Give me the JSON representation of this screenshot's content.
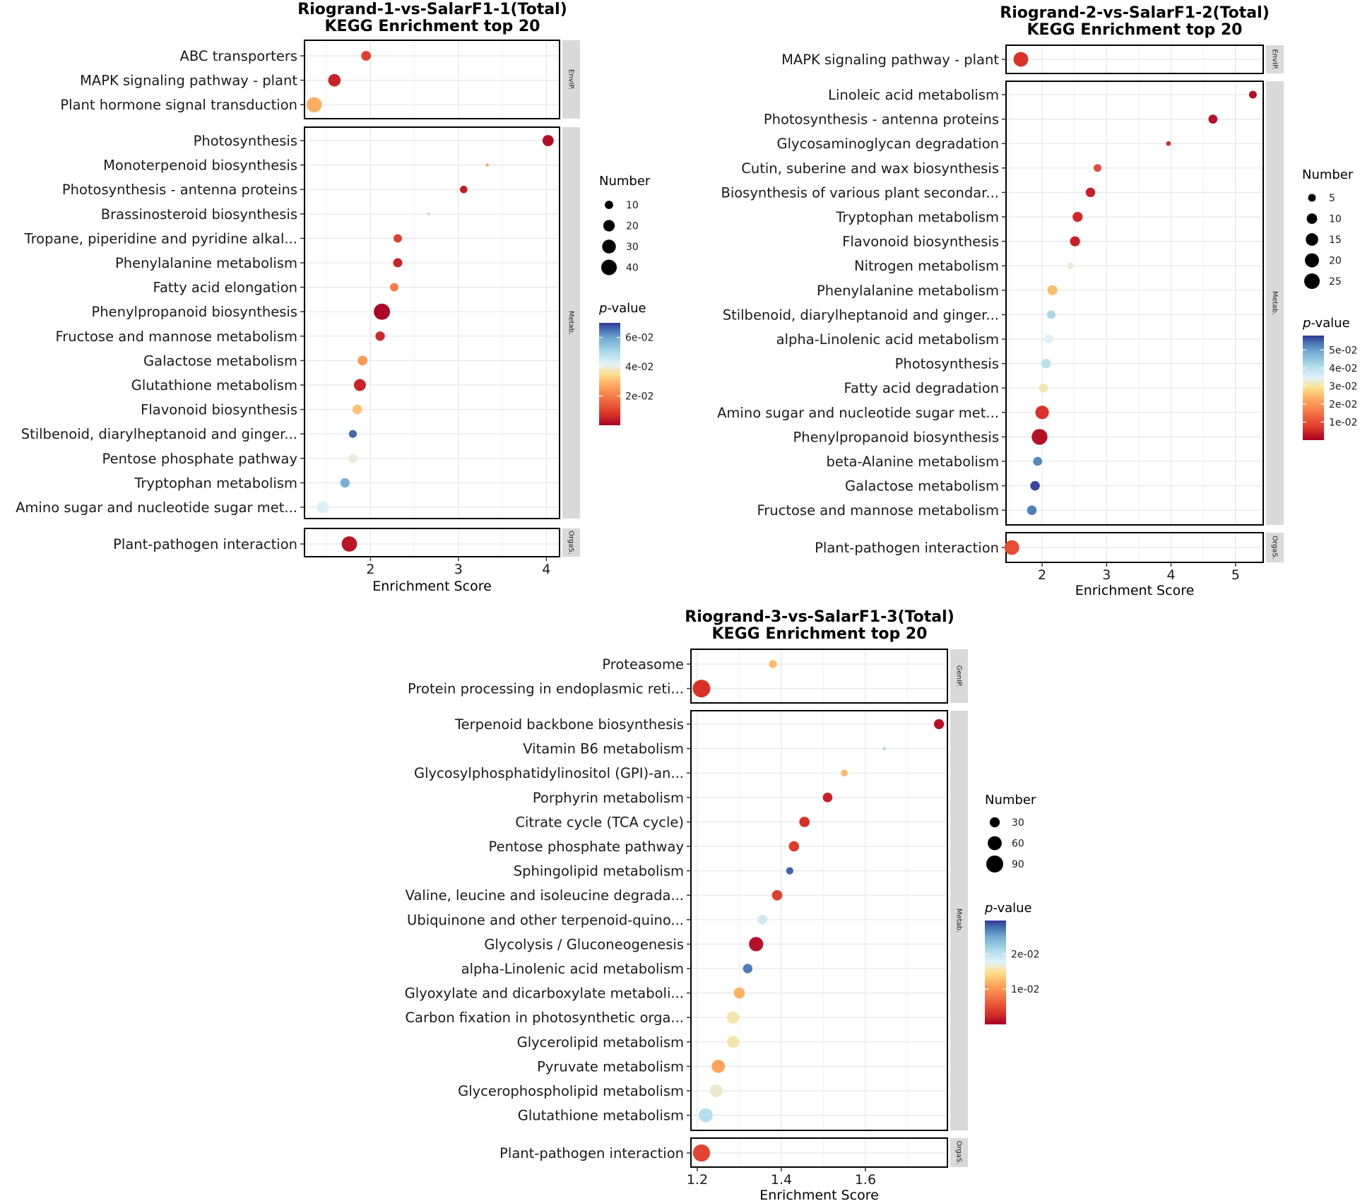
{
  "chart_data": [
    {
      "type": "scatter",
      "title": "Riogrand-1-vs-SalarF1-1(Total)",
      "subtitle": "KEGG Enrichment top 20",
      "xlabel": "Enrichment Score",
      "xlim": [
        1.25,
        4.15
      ],
      "xticks": [
        2,
        3,
        4
      ],
      "xtick_labels": [
        "2",
        "3",
        "4"
      ],
      "size_legend": {
        "title": "Number",
        "values": [
          10,
          20,
          30,
          40
        ],
        "labels": [
          "10",
          "20",
          "30",
          "40"
        ]
      },
      "color_legend": {
        "title_italic": "p",
        "title_rest": "-value",
        "ticks": [
          0.02,
          0.04,
          0.06
        ],
        "tick_labels": [
          "2e-02",
          "4e-02",
          "6e-02"
        ],
        "min": 0.0,
        "max": 0.07
      },
      "panels": [
        {
          "strip": "EnvIP.",
          "terms": [
            {
              "term": "ABC transporters",
              "score": 1.95,
              "count": 14,
              "pvalue": 0.01
            },
            {
              "term": "MAPK signaling pathway - plant",
              "score": 1.59,
              "count": 24,
              "pvalue": 0.005
            },
            {
              "term": "Plant hormone signal transduction",
              "score": 1.36,
              "count": 38,
              "pvalue": 0.028
            }
          ]
        },
        {
          "strip": "Metab.",
          "terms": [
            {
              "term": "Photosynthesis",
              "score": 4.02,
              "count": 19,
              "pvalue": 0.002
            },
            {
              "term": "Monoterpenoid biosynthesis",
              "score": 3.33,
              "count": 2,
              "pvalue": 0.025
            },
            {
              "term": "Photosynthesis - antenna proteins",
              "score": 3.06,
              "count": 8,
              "pvalue": 0.004
            },
            {
              "term": "Brassinosteroid biosynthesis",
              "score": 2.66,
              "count": 2,
              "pvalue": 0.05
            },
            {
              "term": "Tropane, piperidine and pyridine alkal...",
              "score": 2.31,
              "count": 10,
              "pvalue": 0.01
            },
            {
              "term": "Phenylalanine metabolism",
              "score": 2.31,
              "count": 12,
              "pvalue": 0.005
            },
            {
              "term": "Fatty acid elongation",
              "score": 2.27,
              "count": 10,
              "pvalue": 0.02
            },
            {
              "term": "Phenylpropanoid biosynthesis",
              "score": 2.13,
              "count": 44,
              "pvalue": 0.001
            },
            {
              "term": "Fructose and mannose metabolism",
              "score": 2.11,
              "count": 13,
              "pvalue": 0.006
            },
            {
              "term": "Galactose metabolism",
              "score": 1.91,
              "count": 14,
              "pvalue": 0.025
            },
            {
              "term": "Glutathione metabolism",
              "score": 1.88,
              "count": 22,
              "pvalue": 0.005
            },
            {
              "term": "Flavonoid biosynthesis",
              "score": 1.85,
              "count": 14,
              "pvalue": 0.031
            },
            {
              "term": "Stilbenoid, diarylheptanoid and ginger...",
              "score": 1.8,
              "count": 9,
              "pvalue": 0.066
            },
            {
              "term": "Pentose phosphate pathway",
              "score": 1.8,
              "count": 12,
              "pvalue": 0.04
            },
            {
              "term": "Tryptophan metabolism",
              "score": 1.71,
              "count": 13,
              "pvalue": 0.058
            },
            {
              "term": "Amino sugar and nucleotide sugar met...",
              "score": 1.46,
              "count": 22,
              "pvalue": 0.043
            }
          ]
        },
        {
          "strip": "OrgaS.",
          "terms": [
            {
              "term": "Plant-pathogen interaction",
              "score": 1.76,
              "count": 39,
              "pvalue": 0.003
            }
          ]
        }
      ]
    },
    {
      "type": "scatter",
      "title": "Riogrand-2-vs-SalarF1-2(Total)",
      "subtitle": "KEGG Enrichment top 20",
      "xlabel": "Enrichment Score",
      "xlim": [
        1.44,
        5.43
      ],
      "xticks": [
        2,
        3,
        4,
        5
      ],
      "xtick_labels": [
        "2",
        "3",
        "4",
        "5"
      ],
      "size_legend": {
        "title": "Number",
        "values": [
          5,
          10,
          15,
          20,
          25
        ],
        "labels": [
          "5",
          "10",
          "15",
          "20",
          "25"
        ]
      },
      "color_legend": {
        "title_italic": "p",
        "title_rest": "-value",
        "ticks": [
          0.01,
          0.02,
          0.03,
          0.04,
          0.05
        ],
        "tick_labels": [
          "1e-02",
          "2e-02",
          "3e-02",
          "4e-02",
          "5e-02"
        ],
        "min": 0.0,
        "max": 0.058
      },
      "panels": [
        {
          "strip": "EnvIP.",
          "terms": [
            {
              "term": "MAPK signaling pathway - plant",
              "score": 1.67,
              "count": 22,
              "pvalue": 0.006
            }
          ]
        },
        {
          "strip": "Metab.",
          "terms": [
            {
              "term": "Linoleic acid metabolism",
              "score": 5.27,
              "count": 5,
              "pvalue": 0.002
            },
            {
              "term": "Photosynthesis - antenna proteins",
              "score": 4.65,
              "count": 7,
              "pvalue": 0.002
            },
            {
              "term": "Glycosaminoglycan degradation",
              "score": 3.96,
              "count": 2,
              "pvalue": 0.005
            },
            {
              "term": "Cutin, suberine and wax biosynthesis",
              "score": 2.86,
              "count": 5,
              "pvalue": 0.01
            },
            {
              "term": "Biosynthesis of various plant secondar...",
              "score": 2.75,
              "count": 8,
              "pvalue": 0.004
            },
            {
              "term": "Tryptophan metabolism",
              "score": 2.55,
              "count": 9,
              "pvalue": 0.005
            },
            {
              "term": "Flavonoid biosynthesis",
              "score": 2.51,
              "count": 9,
              "pvalue": 0.004
            },
            {
              "term": "Nitrogen metabolism",
              "score": 2.44,
              "count": 4,
              "pvalue": 0.033
            },
            {
              "term": "Phenylalanine metabolism",
              "score": 2.16,
              "count": 9,
              "pvalue": 0.025
            },
            {
              "term": "Stilbenoid, diarylheptanoid and ginger...",
              "score": 2.14,
              "count": 6,
              "pvalue": 0.042
            },
            {
              "term": "alpha-Linolenic acid metabolism",
              "score": 2.1,
              "count": 7,
              "pvalue": 0.035
            },
            {
              "term": "Photosynthesis",
              "score": 2.06,
              "count": 8,
              "pvalue": 0.04
            },
            {
              "term": "Fatty acid degradation",
              "score": 2.02,
              "count": 7,
              "pvalue": 0.031
            },
            {
              "term": "Amino sugar and nucleotide sugar met...",
              "score": 2.0,
              "count": 18,
              "pvalue": 0.006
            },
            {
              "term": "Phenylpropanoid biosynthesis",
              "score": 1.96,
              "count": 26,
              "pvalue": 0.002
            },
            {
              "term": "beta-Alanine metabolism",
              "score": 1.93,
              "count": 7,
              "pvalue": 0.052
            },
            {
              "term": "Galactose metabolism",
              "score": 1.89,
              "count": 8,
              "pvalue": 0.057
            },
            {
              "term": "Fructose and mannose metabolism",
              "score": 1.84,
              "count": 8,
              "pvalue": 0.053
            }
          ]
        },
        {
          "strip": "OrgaS.",
          "terms": [
            {
              "term": "Plant-pathogen interaction",
              "score": 1.53,
              "count": 22,
              "pvalue": 0.01
            }
          ]
        }
      ]
    },
    {
      "type": "scatter",
      "title": "Riogrand-3-vs-SalarF1-3(Total)",
      "subtitle": "KEGG Enrichment top 20",
      "xlabel": "Enrichment Score",
      "xlim": [
        1.185,
        1.795
      ],
      "xticks": [
        1.2,
        1.4,
        1.6
      ],
      "xtick_labels": [
        "1.2",
        "1.4",
        "1.6"
      ],
      "size_legend": {
        "title": "Number",
        "values": [
          30,
          60,
          90
        ],
        "labels": [
          "30",
          "60",
          "90"
        ]
      },
      "color_legend": {
        "title_italic": "p",
        "title_rest": "-value",
        "ticks": [
          0.01,
          0.02
        ],
        "tick_labels": [
          "1e-02",
          "2e-02"
        ],
        "min": 0.0,
        "max": 0.0295
      },
      "panels": [
        {
          "strip": "GenIP.",
          "terms": [
            {
              "term": "Proteasome",
              "score": 1.38,
              "count": 20,
              "pvalue": 0.0125
            },
            {
              "term": "Protein processing in endoplasmic reti...",
              "score": 1.21,
              "count": 98,
              "pvalue": 0.003
            }
          ]
        },
        {
          "strip": "Metab.",
          "terms": [
            {
              "term": "Terpenoid backbone biosynthesis",
              "score": 1.775,
              "count": 30,
              "pvalue": 0.001
            },
            {
              "term": "Vitamin B6 metabolism",
              "score": 1.645,
              "count": 5,
              "pvalue": 0.022
            },
            {
              "term": "Glycosylphosphatidylinositol (GPI)-an...",
              "score": 1.55,
              "count": 15,
              "pvalue": 0.0125
            },
            {
              "term": "Porphyrin metabolism",
              "score": 1.51,
              "count": 28,
              "pvalue": 0.002
            },
            {
              "term": "Citrate cycle (TCA cycle)",
              "score": 1.455,
              "count": 32,
              "pvalue": 0.003
            },
            {
              "term": "Pentose phosphate pathway",
              "score": 1.43,
              "count": 32,
              "pvalue": 0.004
            },
            {
              "term": "Sphingolipid metabolism",
              "score": 1.42,
              "count": 17,
              "pvalue": 0.028
            },
            {
              "term": "Valine, leucine and isoleucine degrada...",
              "score": 1.39,
              "count": 32,
              "pvalue": 0.004
            },
            {
              "term": "Ubiquinone and other terpenoid-quino...",
              "score": 1.355,
              "count": 28,
              "pvalue": 0.019
            },
            {
              "term": "Glycolysis / Gluconeogenesis",
              "score": 1.34,
              "count": 62,
              "pvalue": 0.001
            },
            {
              "term": "alpha-Linolenic acid metabolism",
              "score": 1.32,
              "count": 27,
              "pvalue": 0.027
            },
            {
              "term": "Glyoxylate and dicarboxylate metaboli...",
              "score": 1.3,
              "count": 36,
              "pvalue": 0.012
            },
            {
              "term": "Carbon fixation in photosynthetic orga...",
              "score": 1.285,
              "count": 45,
              "pvalue": 0.0155
            },
            {
              "term": "Glycerolipid metabolism",
              "score": 1.285,
              "count": 42,
              "pvalue": 0.0155
            },
            {
              "term": "Pyruvate metabolism",
              "score": 1.25,
              "count": 52,
              "pvalue": 0.011
            },
            {
              "term": "Glycerophospholipid metabolism",
              "score": 1.245,
              "count": 50,
              "pvalue": 0.0165
            },
            {
              "term": "Glutathione metabolism",
              "score": 1.22,
              "count": 60,
              "pvalue": 0.0205
            }
          ]
        },
        {
          "strip": "OrgaS.",
          "terms": [
            {
              "term": "Plant-pathogen interaction",
              "score": 1.21,
              "count": 92,
              "pvalue": 0.0045
            }
          ]
        }
      ]
    }
  ]
}
